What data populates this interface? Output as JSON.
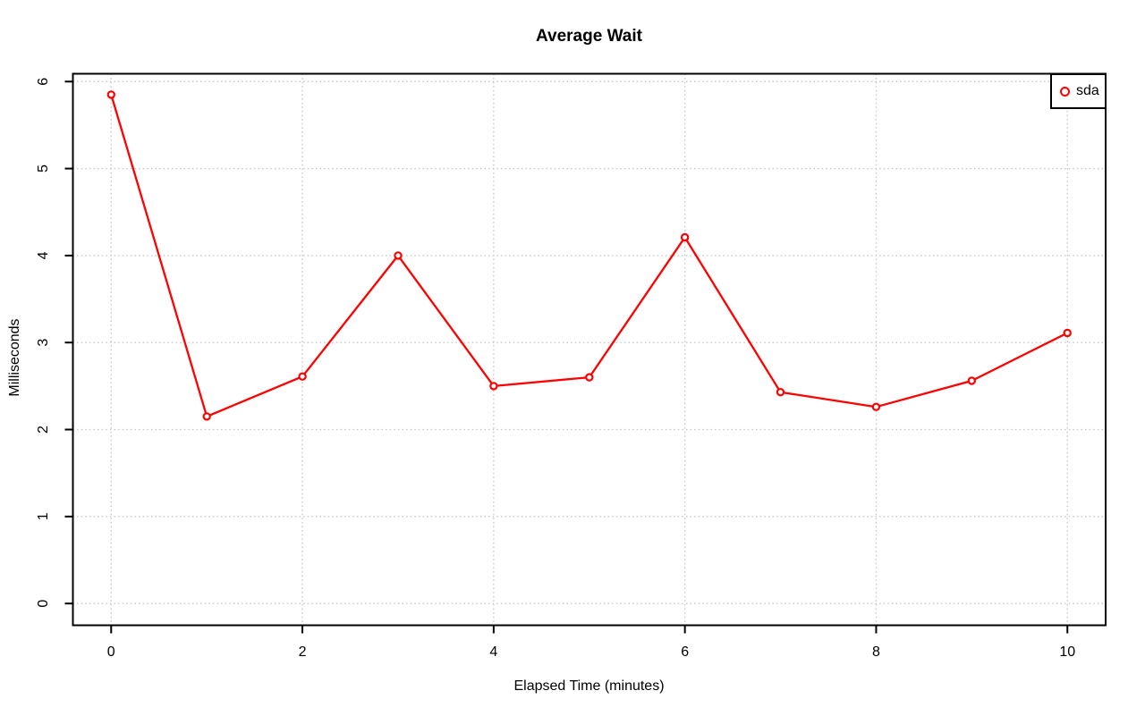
{
  "figure": {
    "title": "Average Wait",
    "x_axis_label": "Elapsed Time (minutes)",
    "y_axis_label": "Milliseconds"
  },
  "legend": {
    "position": "top-right",
    "items": [
      {
        "label": "sda",
        "marker": "open-circle",
        "color": "#ff0000"
      }
    ]
  },
  "colors": {
    "series": "#ff0000",
    "grid": "#c8c8c8",
    "axis": "#000000",
    "background": "#ffffff"
  },
  "chart_data": {
    "type": "line",
    "title": "Average Wait",
    "xlabel": "Elapsed Time (minutes)",
    "ylabel": "Milliseconds",
    "x": [
      0,
      1,
      2,
      3,
      4,
      5,
      6,
      7,
      8,
      9,
      10
    ],
    "series": [
      {
        "name": "sda",
        "color": "#ff0000",
        "marker": "open-circle",
        "values": [
          5.85,
          2.15,
          2.61,
          4.0,
          2.5,
          2.6,
          4.21,
          2.43,
          2.26,
          2.56,
          3.11
        ]
      }
    ],
    "x_ticks": [
      0,
      2,
      4,
      6,
      8,
      10
    ],
    "y_ticks": [
      0,
      1,
      2,
      3,
      4,
      5,
      6
    ],
    "xlim": [
      -0.4,
      10.4
    ],
    "ylim": [
      -0.25,
      6.09
    ],
    "grid": true,
    "grid_style": "dotted",
    "grid_color": "#c8c8c8",
    "legend_position": "top-right"
  }
}
